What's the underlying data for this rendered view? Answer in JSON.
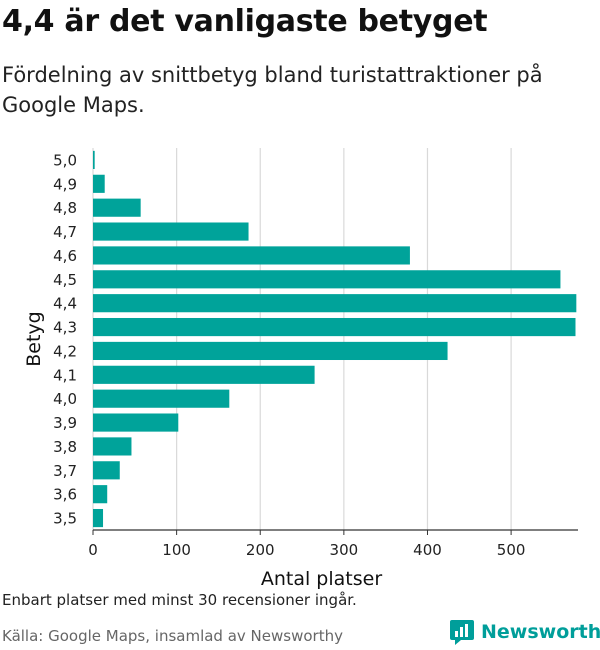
{
  "header": {
    "title": "4,4 är det vanligaste betyget",
    "subtitle": "Fördelning av snittbetyg bland turistattraktioner på Google Maps."
  },
  "footer": {
    "note": "Enbart platser med minst 30 recensioner ingår.",
    "source": "Källa: Google Maps, insamlad av Newsworthy",
    "brand": "Newsworthy",
    "brand_icon": "newsworthy-logo-icon"
  },
  "colors": {
    "bar": "#00A39A",
    "brand": "#009E9A",
    "grid": "#d9d9d9"
  },
  "chart_data": {
    "type": "bar",
    "orientation": "horizontal",
    "xlabel": "Antal platser",
    "ylabel": "Betyg",
    "categories": [
      "5,0",
      "4,9",
      "4,8",
      "4,7",
      "4,6",
      "4,5",
      "4,4",
      "4,3",
      "4,2",
      "4,1",
      "4,0",
      "3,9",
      "3,8",
      "3,7",
      "3,6",
      "3,5"
    ],
    "values": [
      2,
      14,
      57,
      186,
      379,
      559,
      578,
      577,
      424,
      265,
      163,
      102,
      46,
      32,
      17,
      12
    ],
    "xlim": [
      0,
      580
    ],
    "xticks": [
      0,
      100,
      200,
      300,
      400,
      500
    ],
    "grid": true
  }
}
